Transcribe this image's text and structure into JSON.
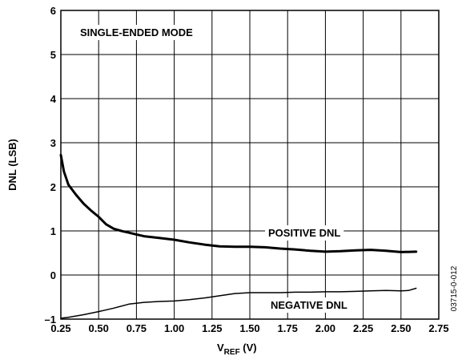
{
  "chart_data": {
    "type": "line",
    "title": "",
    "xlabel_main": "V",
    "xlabel_sub": "REF",
    "xlabel_unit": " (V)",
    "ylabel": "DNL (LSB)",
    "xlim": [
      0.25,
      2.75
    ],
    "ylim": [
      -1,
      6
    ],
    "grid": true,
    "x_ticks": [
      "0.25",
      "0.50",
      "0.75",
      "1.00",
      "1.25",
      "1.50",
      "1.75",
      "2.00",
      "2.25",
      "2.50",
      "2.75"
    ],
    "x_tick_values": [
      0.25,
      0.5,
      0.75,
      1.0,
      1.25,
      1.5,
      1.75,
      2.0,
      2.25,
      2.5,
      2.75
    ],
    "y_ticks": [
      "–1",
      "0",
      "1",
      "2",
      "3",
      "4",
      "5",
      "6"
    ],
    "y_tick_values": [
      -1,
      0,
      1,
      2,
      3,
      4,
      5,
      6
    ],
    "mode_label": "SINGLE-ENDED MODE",
    "figure_id": "03715-0-012",
    "series": [
      {
        "name": "POSITIVE DNL",
        "stroke": "#000000",
        "x": [
          0.25,
          0.27,
          0.3,
          0.35,
          0.4,
          0.45,
          0.5,
          0.55,
          0.6,
          0.65,
          0.7,
          0.75,
          0.8,
          0.9,
          1.0,
          1.1,
          1.2,
          1.3,
          1.4,
          1.5,
          1.6,
          1.7,
          1.8,
          1.9,
          2.0,
          2.1,
          2.2,
          2.3,
          2.4,
          2.5,
          2.6
        ],
        "y": [
          2.72,
          2.35,
          2.05,
          1.82,
          1.62,
          1.46,
          1.32,
          1.15,
          1.05,
          1.0,
          0.96,
          0.92,
          0.88,
          0.84,
          0.8,
          0.74,
          0.69,
          0.65,
          0.64,
          0.64,
          0.63,
          0.6,
          0.58,
          0.55,
          0.53,
          0.54,
          0.56,
          0.57,
          0.55,
          0.52,
          0.53
        ]
      },
      {
        "name": "NEGATIVE DNL",
        "stroke": "#000000",
        "x": [
          0.25,
          0.3,
          0.4,
          0.5,
          0.6,
          0.7,
          0.8,
          0.9,
          1.0,
          1.1,
          1.2,
          1.3,
          1.4,
          1.5,
          1.6,
          1.7,
          1.8,
          1.9,
          2.0,
          2.1,
          2.2,
          2.3,
          2.4,
          2.5,
          2.55,
          2.6
        ],
        "y": [
          -0.98,
          -0.96,
          -0.9,
          -0.83,
          -0.75,
          -0.66,
          -0.62,
          -0.6,
          -0.59,
          -0.56,
          -0.52,
          -0.47,
          -0.42,
          -0.4,
          -0.4,
          -0.4,
          -0.39,
          -0.39,
          -0.38,
          -0.38,
          -0.37,
          -0.36,
          -0.35,
          -0.36,
          -0.35,
          -0.3
        ]
      }
    ]
  }
}
